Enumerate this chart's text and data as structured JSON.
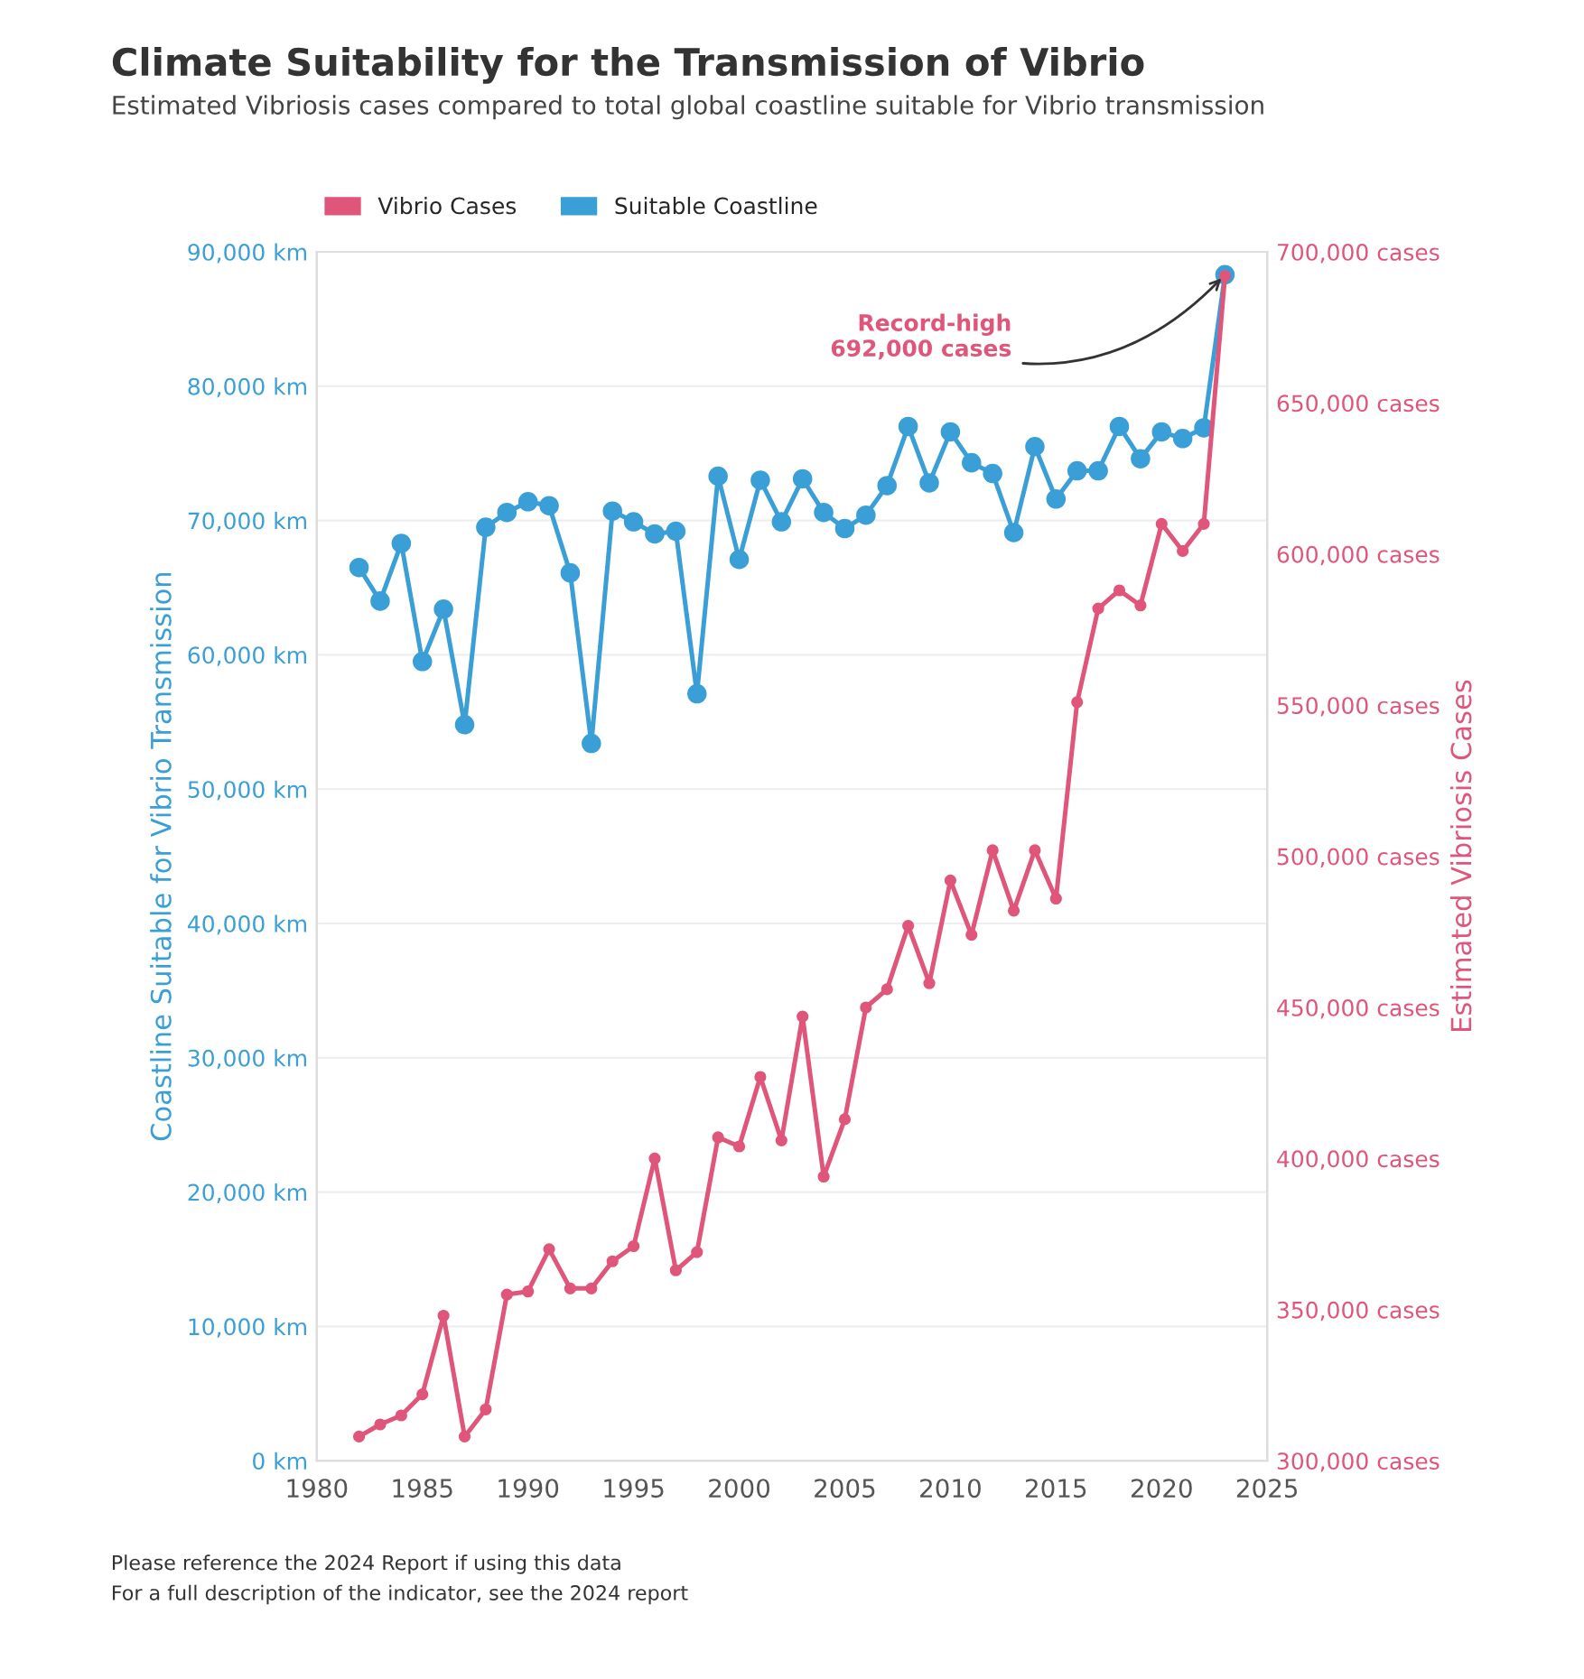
{
  "chart_data": {
    "type": "line",
    "title": "Climate Suitability for the Transmission of Vibrio",
    "subtitle": "Estimated Vibriosis cases compared to total global coastline suitable for Vibrio transmission",
    "ylabel": "Coastline Suitable for Vibrio Transmission",
    "y2label": "Estimated Vibriosis Cases",
    "x": [
      1982,
      1983,
      1984,
      1985,
      1986,
      1987,
      1988,
      1989,
      1990,
      1991,
      1992,
      1993,
      1994,
      1995,
      1996,
      1997,
      1998,
      1999,
      2000,
      2001,
      2002,
      2003,
      2004,
      2005,
      2006,
      2007,
      2008,
      2009,
      2010,
      2011,
      2012,
      2013,
      2014,
      2015,
      2016,
      2017,
      2018,
      2019,
      2020,
      2021,
      2022,
      2023
    ],
    "series": [
      {
        "name": "Vibrio Cases",
        "color": "#e0557a",
        "axis": "y2",
        "values": [
          308000,
          312000,
          315000,
          322000,
          348000,
          308000,
          317000,
          355000,
          356000,
          370000,
          357000,
          357000,
          366000,
          371000,
          400000,
          363000,
          369000,
          407000,
          404000,
          427000,
          406000,
          447000,
          394000,
          413000,
          450000,
          456000,
          477000,
          458000,
          492000,
          474000,
          502000,
          482000,
          502000,
          486000,
          551000,
          582000,
          588000,
          583000,
          610000,
          601000,
          610000,
          692000
        ]
      },
      {
        "name": "Suitable Coastline",
        "color": "#3a9fd6",
        "values": [
          66500,
          64000,
          68300,
          59500,
          63400,
          54800,
          69500,
          70600,
          71400,
          71100,
          66100,
          53400,
          70700,
          69900,
          69000,
          69200,
          57100,
          73300,
          67100,
          73000,
          69900,
          73100,
          70600,
          69400,
          70400,
          72600,
          77000,
          72800,
          76600,
          74300,
          73500,
          69100,
          75500,
          71600,
          73700,
          73700,
          77000,
          74600,
          76600,
          76100,
          76900,
          88300
        ]
      }
    ],
    "xlim": [
      1980,
      2025
    ],
    "xticks": [
      1980,
      1985,
      1990,
      1995,
      2000,
      2005,
      2010,
      2015,
      2020,
      2025
    ],
    "ylim": [
      0,
      90000
    ],
    "yticks": [
      {
        "value": 0,
        "label": "0 km"
      },
      {
        "value": 10000,
        "label": "10,000 km"
      },
      {
        "value": 20000,
        "label": "20,000 km"
      },
      {
        "value": 30000,
        "label": "30,000 km"
      },
      {
        "value": 40000,
        "label": "40,000 km"
      },
      {
        "value": 50000,
        "label": "50,000 km"
      },
      {
        "value": 60000,
        "label": "60,000 km"
      },
      {
        "value": 70000,
        "label": "70,000 km"
      },
      {
        "value": 80000,
        "label": "80,000 km"
      },
      {
        "value": 90000,
        "label": "90,000 km"
      }
    ],
    "y2lim": [
      300000,
      700000
    ],
    "y2ticks": [
      {
        "value": 300000,
        "label": "300,000 cases"
      },
      {
        "value": 350000,
        "label": "350,000 cases"
      },
      {
        "value": 400000,
        "label": "400,000 cases"
      },
      {
        "value": 450000,
        "label": "450,000 cases"
      },
      {
        "value": 500000,
        "label": "500,000 cases"
      },
      {
        "value": 550000,
        "label": "550,000 cases"
      },
      {
        "value": 600000,
        "label": "600,000 cases"
      },
      {
        "value": 650000,
        "label": "650,000 cases"
      },
      {
        "value": 700000,
        "label": "700,000 cases"
      }
    ],
    "grid": "y",
    "legend": "top left",
    "marker": "circle",
    "line_style": "solid",
    "annotations": [
      {
        "text": "Record-high\n692,000 cases",
        "x": 2023,
        "y": 88300
      },
      "Please reference the 2024 Report if using this data",
      "For a full description of the indicator, see the 2024 report"
    ]
  }
}
